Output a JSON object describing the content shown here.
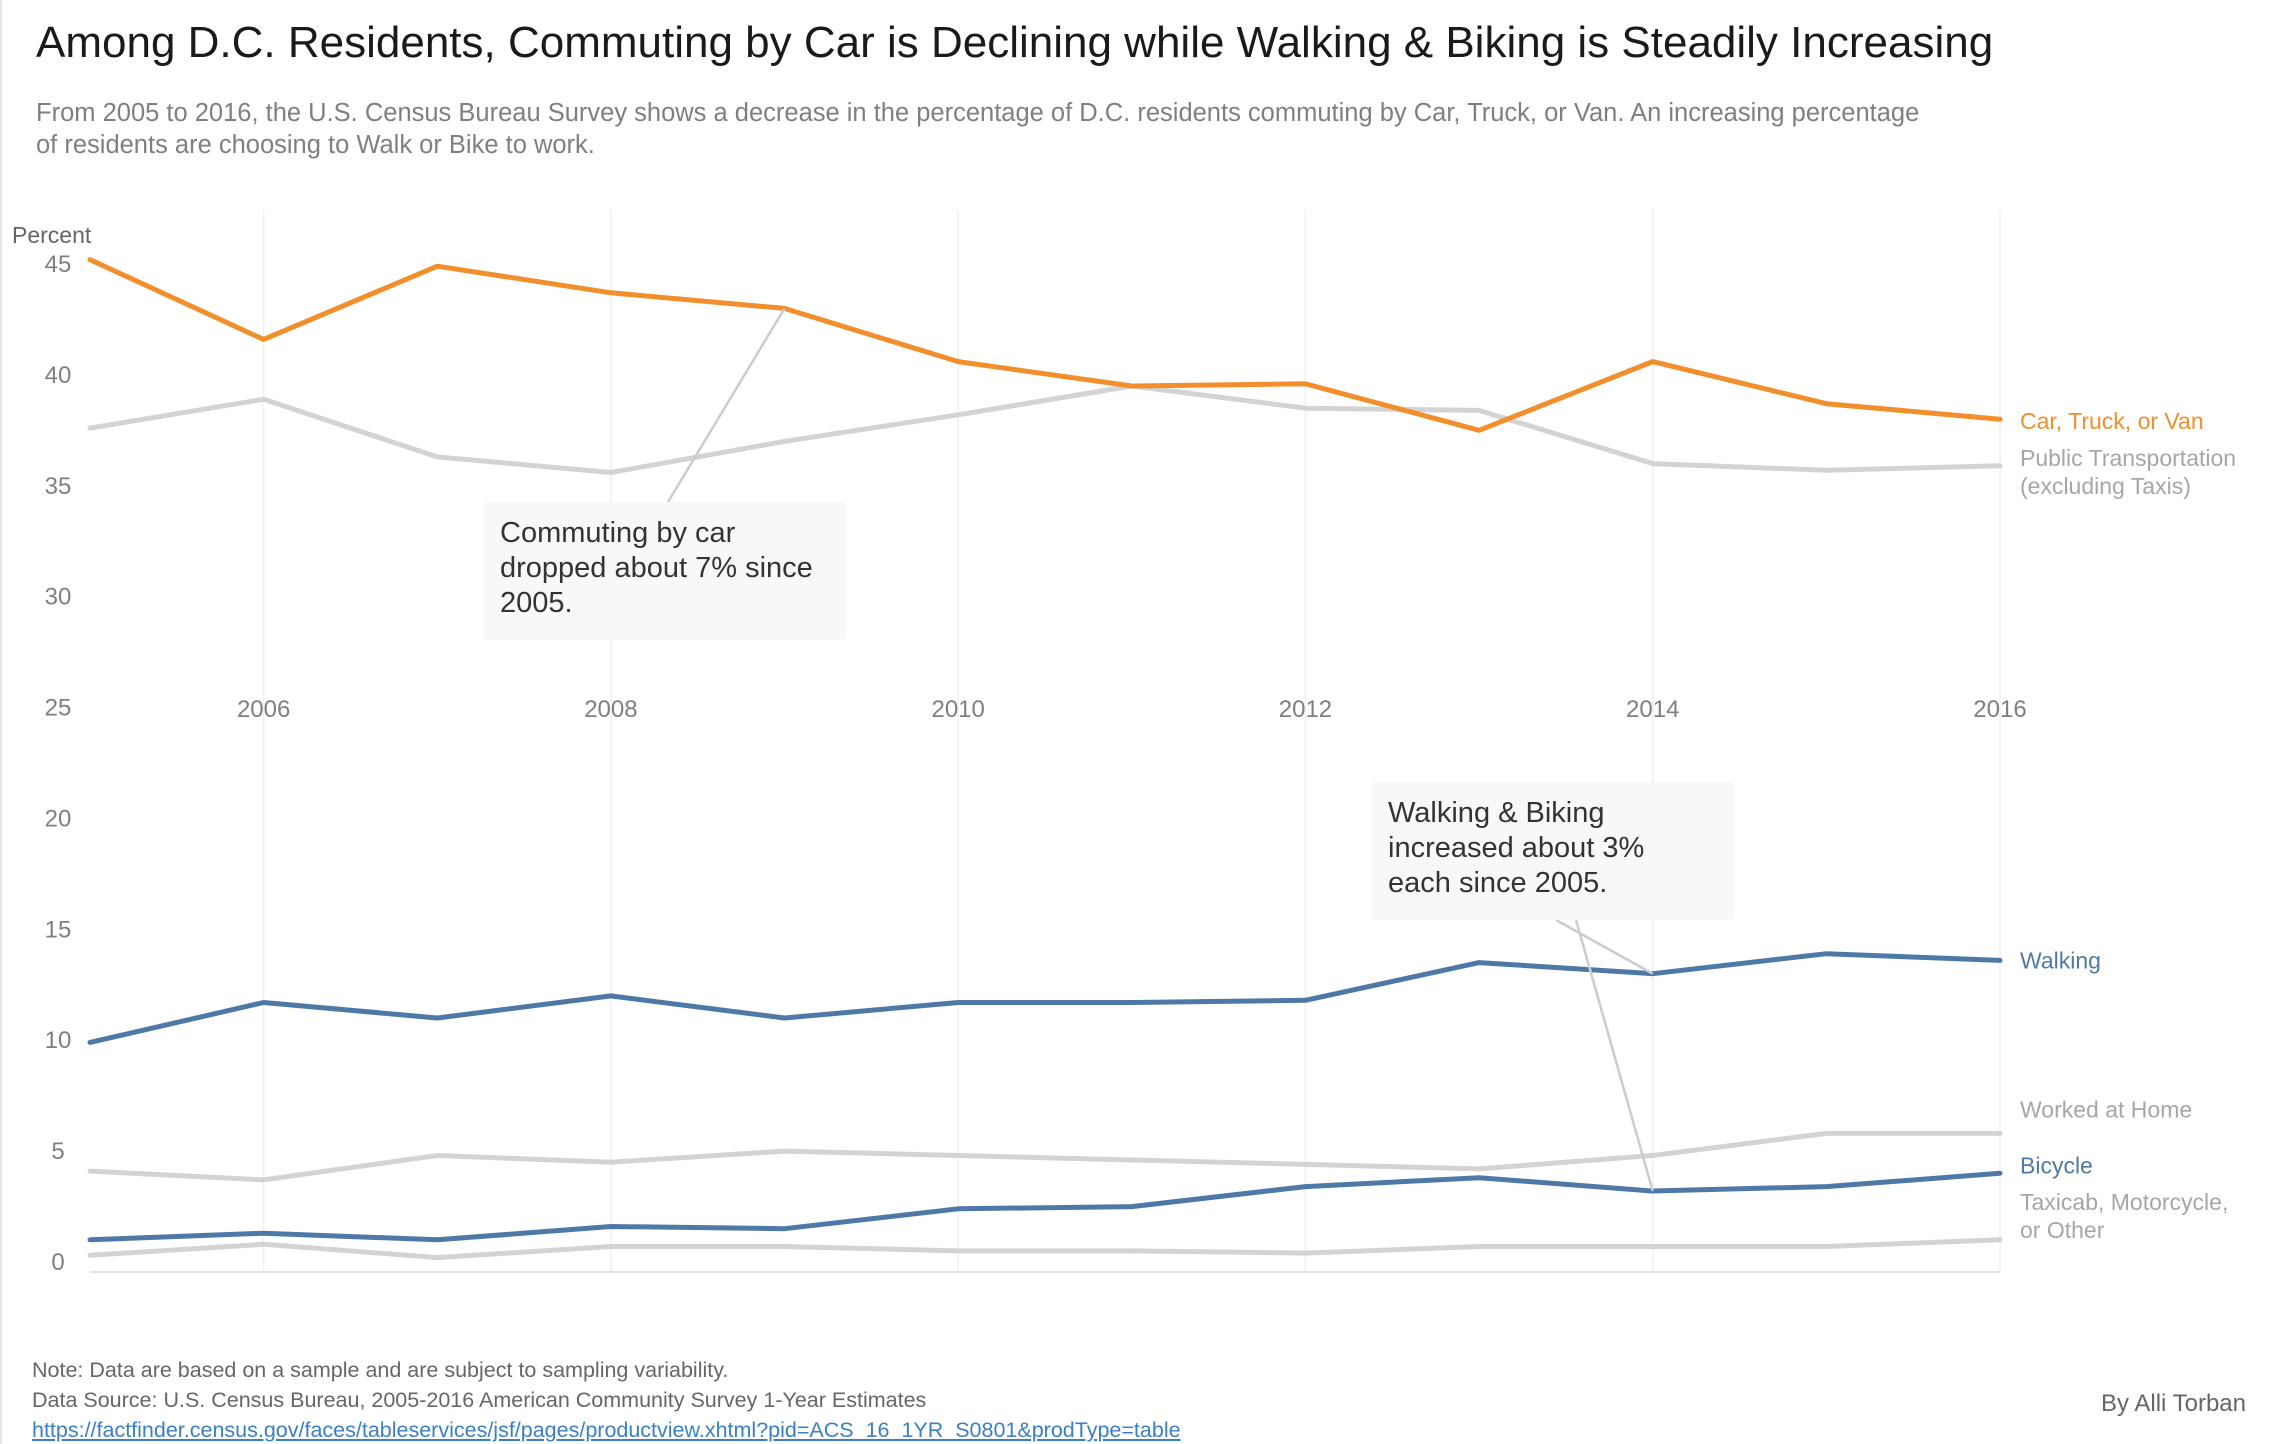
{
  "title": "Among D.C. Residents, Commuting by Car is Declining while Walking & Biking is Steadily Increasing",
  "subtitle": "From 2005 to 2016, the U.S. Census Bureau Survey shows a decrease in the percentage of D.C. residents commuting by Car, Truck, or Van. An increasing percentage of residents are choosing to Walk or Bike to work.",
  "footer": {
    "note": "Note: Data are based on a sample and are subject to sampling variability.",
    "source": "Data Source: U.S. Census Bureau, 2005-2016 American Community Survey 1-Year Estimates",
    "url": "https://factfinder.census.gov/faces/tableservices/jsf/pages/productview.xhtml?pid=ACS_16_1YR_S0801&prodType=table",
    "byline": "By Alli Torban"
  },
  "chart_data": {
    "type": "line",
    "ylabel": "Percent",
    "xlabel": "",
    "ylim": [
      0,
      45
    ],
    "yticks": [
      0,
      5,
      10,
      15,
      20,
      25,
      30,
      35,
      40,
      45
    ],
    "xticks": [
      2006,
      2008,
      2010,
      2012,
      2014,
      2016
    ],
    "x": [
      2005,
      2006,
      2007,
      2008,
      2009,
      2010,
      2011,
      2012,
      2013,
      2014,
      2015,
      2016
    ],
    "series": [
      {
        "name": "Public Transportation (excluding Taxis)",
        "label_lines": [
          "Public Transportation",
          "(excluding Taxis)"
        ],
        "color": "#d3d3d3",
        "label_color": "#a6a6a6",
        "values": [
          37.6,
          38.9,
          36.3,
          35.6,
          37.0,
          38.2,
          39.5,
          38.5,
          38.4,
          36.0,
          35.7,
          35.9
        ]
      },
      {
        "name": "Car, Truck, or Van",
        "label_lines": [
          "Car, Truck, or Van"
        ],
        "color": "#f28e2b",
        "label_color": "#f28e2b",
        "values": [
          45.2,
          41.6,
          44.9,
          43.7,
          43.0,
          40.6,
          39.5,
          39.6,
          37.5,
          40.6,
          38.7,
          38.0
        ]
      },
      {
        "name": "Worked at Home",
        "label_lines": [
          "Worked at Home"
        ],
        "color": "#d3d3d3",
        "label_color": "#a6a6a6",
        "values": [
          4.1,
          3.7,
          4.8,
          4.5,
          5.0,
          4.8,
          4.6,
          4.4,
          4.2,
          4.8,
          5.8,
          5.8
        ]
      },
      {
        "name": "Taxicab, Motorcycle, or Other",
        "label_lines": [
          "Taxicab, Motorcycle,",
          "or Other"
        ],
        "color": "#d3d3d3",
        "label_color": "#a6a6a6",
        "values": [
          0.3,
          0.8,
          0.2,
          0.7,
          0.7,
          0.5,
          0.5,
          0.4,
          0.7,
          0.7,
          0.7,
          1.0
        ]
      },
      {
        "name": "Walking",
        "label_lines": [
          "Walking"
        ],
        "color": "#4e79a7",
        "label_color": "#4e79a7",
        "values": [
          9.9,
          11.7,
          11.0,
          12.0,
          11.0,
          11.7,
          11.7,
          11.8,
          13.5,
          13.0,
          13.9,
          13.6
        ]
      },
      {
        "name": "Bicycle",
        "label_lines": [
          "Bicycle"
        ],
        "color": "#4e79a7",
        "label_color": "#4e79a7",
        "values": [
          1.0,
          1.3,
          1.0,
          1.6,
          1.5,
          2.4,
          2.5,
          3.4,
          3.8,
          3.2,
          3.4,
          4.0
        ]
      }
    ],
    "annotations": [
      {
        "name": "car-drop-callout",
        "lines": [
          "Commuting by car",
          "dropped about 7% since",
          "2005."
        ],
        "pointers": [
          {
            "series": "Car, Truck, or Van",
            "x": 2009
          }
        ]
      },
      {
        "name": "walk-bike-callout",
        "lines": [
          "Walking & Biking",
          "increased about 3%",
          "each since 2005."
        ],
        "pointers": [
          {
            "series": "Walking",
            "x": 2014
          },
          {
            "series": "Bicycle",
            "x": 2014
          }
        ]
      }
    ]
  }
}
